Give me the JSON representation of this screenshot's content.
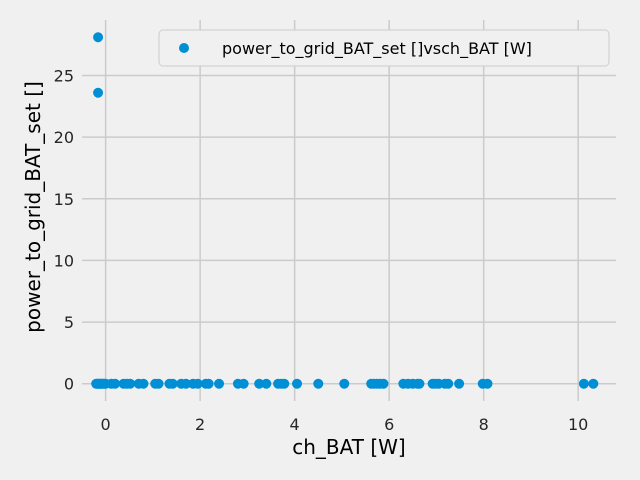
{
  "chart_data": {
    "type": "scatter",
    "xlabel": "ch_BAT [W]",
    "ylabel": "power_to_grid_BAT_set []",
    "xlim": [
      -0.5,
      10.8
    ],
    "ylim": [
      -1.4,
      29.5
    ],
    "xticks": [
      "0",
      "2",
      "4",
      "6",
      "8",
      "10"
    ],
    "xtick_values": [
      0,
      2,
      4,
      6,
      8,
      10
    ],
    "yticks": [
      "0",
      "5",
      "10",
      "15",
      "20",
      "25"
    ],
    "ytick_values": [
      0,
      5,
      10,
      15,
      20,
      25
    ],
    "grid": true,
    "legend_position": "top-right",
    "colors": {
      "series": "#008fd5",
      "grid": "#cbcbcb",
      "background": "#f0f0f0"
    },
    "series": [
      {
        "name": "power_to_grid_BAT_set []vsch_BAT [W]",
        "points": [
          [
            -0.16,
            28.1
          ],
          [
            -0.16,
            23.6
          ],
          [
            -0.2,
            0
          ],
          [
            -0.18,
            0
          ],
          [
            -0.16,
            0
          ],
          [
            -0.14,
            0
          ],
          [
            -0.12,
            0
          ],
          [
            -0.1,
            0
          ],
          [
            -0.08,
            0
          ],
          [
            -0.06,
            0
          ],
          [
            -0.03,
            0
          ],
          [
            0.0,
            0
          ],
          [
            0.12,
            0
          ],
          [
            0.2,
            0
          ],
          [
            0.38,
            0
          ],
          [
            0.45,
            0
          ],
          [
            0.52,
            0
          ],
          [
            0.7,
            0
          ],
          [
            0.8,
            0
          ],
          [
            1.05,
            0
          ],
          [
            1.12,
            0
          ],
          [
            1.35,
            0
          ],
          [
            1.42,
            0
          ],
          [
            1.6,
            0
          ],
          [
            1.7,
            0
          ],
          [
            1.85,
            0
          ],
          [
            1.95,
            0
          ],
          [
            2.12,
            0
          ],
          [
            2.18,
            0
          ],
          [
            2.4,
            0
          ],
          [
            2.8,
            0
          ],
          [
            2.92,
            0
          ],
          [
            3.25,
            0
          ],
          [
            3.4,
            0
          ],
          [
            3.65,
            0
          ],
          [
            3.72,
            0
          ],
          [
            3.78,
            0
          ],
          [
            4.05,
            0
          ],
          [
            4.5,
            0
          ],
          [
            5.05,
            0
          ],
          [
            5.62,
            0
          ],
          [
            5.68,
            0
          ],
          [
            5.74,
            0
          ],
          [
            5.8,
            0
          ],
          [
            5.88,
            0
          ],
          [
            6.3,
            0
          ],
          [
            6.4,
            0
          ],
          [
            6.5,
            0
          ],
          [
            6.6,
            0
          ],
          [
            6.64,
            0
          ],
          [
            6.92,
            0
          ],
          [
            6.98,
            0
          ],
          [
            7.05,
            0
          ],
          [
            7.18,
            0
          ],
          [
            7.25,
            0
          ],
          [
            7.48,
            0
          ],
          [
            7.98,
            0
          ],
          [
            8.08,
            0
          ],
          [
            10.12,
            0
          ],
          [
            10.32,
            0
          ]
        ]
      }
    ]
  }
}
